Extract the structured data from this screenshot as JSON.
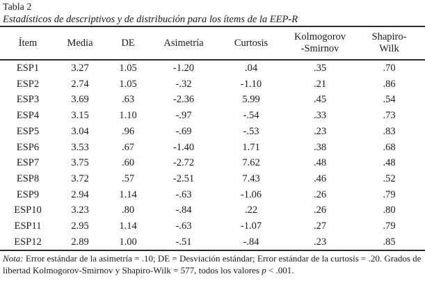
{
  "colors": {
    "background": "#ffffff",
    "text": "#1b1b1b",
    "rule": "#2a2a2a"
  },
  "table": {
    "label": "Tabla 2",
    "title": "Estadísticos de descriptivos y de distribución para los ítems de la EEP-R",
    "columns": [
      "Ítem",
      "Media",
      "DE",
      "Asimetría",
      "Curtosis",
      "Kolmogorov\n-Smirnov",
      "Shapiro-\nWilk"
    ],
    "rows": [
      [
        "ESP1",
        "3.27",
        "1.05",
        "-1.20",
        ".04",
        ".35",
        ".70"
      ],
      [
        "ESP2",
        "2.74",
        "1.05",
        "-.32",
        "-1.10",
        ".21",
        ".86"
      ],
      [
        "ESP3",
        "3.69",
        ".63",
        "-2.36",
        "5.99",
        ".45",
        ".54"
      ],
      [
        "ESP4",
        "3.15",
        "1.10",
        "-.97",
        "-.54",
        ".33",
        ".73"
      ],
      [
        "ESP5",
        "3.04",
        ".96",
        "-.69",
        "-.53",
        ".23",
        ".83"
      ],
      [
        "ESP6",
        "3.53",
        ".67",
        "-1.40",
        "1.71",
        ".38",
        ".68"
      ],
      [
        "ESP7",
        "3.75",
        ".60",
        "-2.72",
        "7.62",
        ".48",
        ".48"
      ],
      [
        "ESP8",
        "3.72",
        ".57",
        "-2.51",
        "7.43",
        ".46",
        ".52"
      ],
      [
        "ESP9",
        "2.94",
        "1.14",
        "-.63",
        "-1.06",
        ".26",
        ".79"
      ],
      [
        "ESP10",
        "3.23",
        ".80",
        "-.84",
        ".22",
        ".26",
        ".80"
      ],
      [
        "ESP11",
        "2.95",
        "1.14",
        "-.63",
        "-1.07",
        ".27",
        ".79"
      ],
      [
        "ESP12",
        "2.89",
        "1.00",
        "-.51",
        "-.84",
        ".23",
        ".85"
      ]
    ]
  },
  "note": {
    "label": "Nota:",
    "body": " Error estándar de la asimetría = .10; DE = Desviación estándar; Error estándar de la curtosis = .20. Grados de libertad Kolmogorov-Smirnov y Shapiro-Wilk = 577, todos los valores ",
    "p_symbol": "p",
    "tail": " < .001."
  }
}
